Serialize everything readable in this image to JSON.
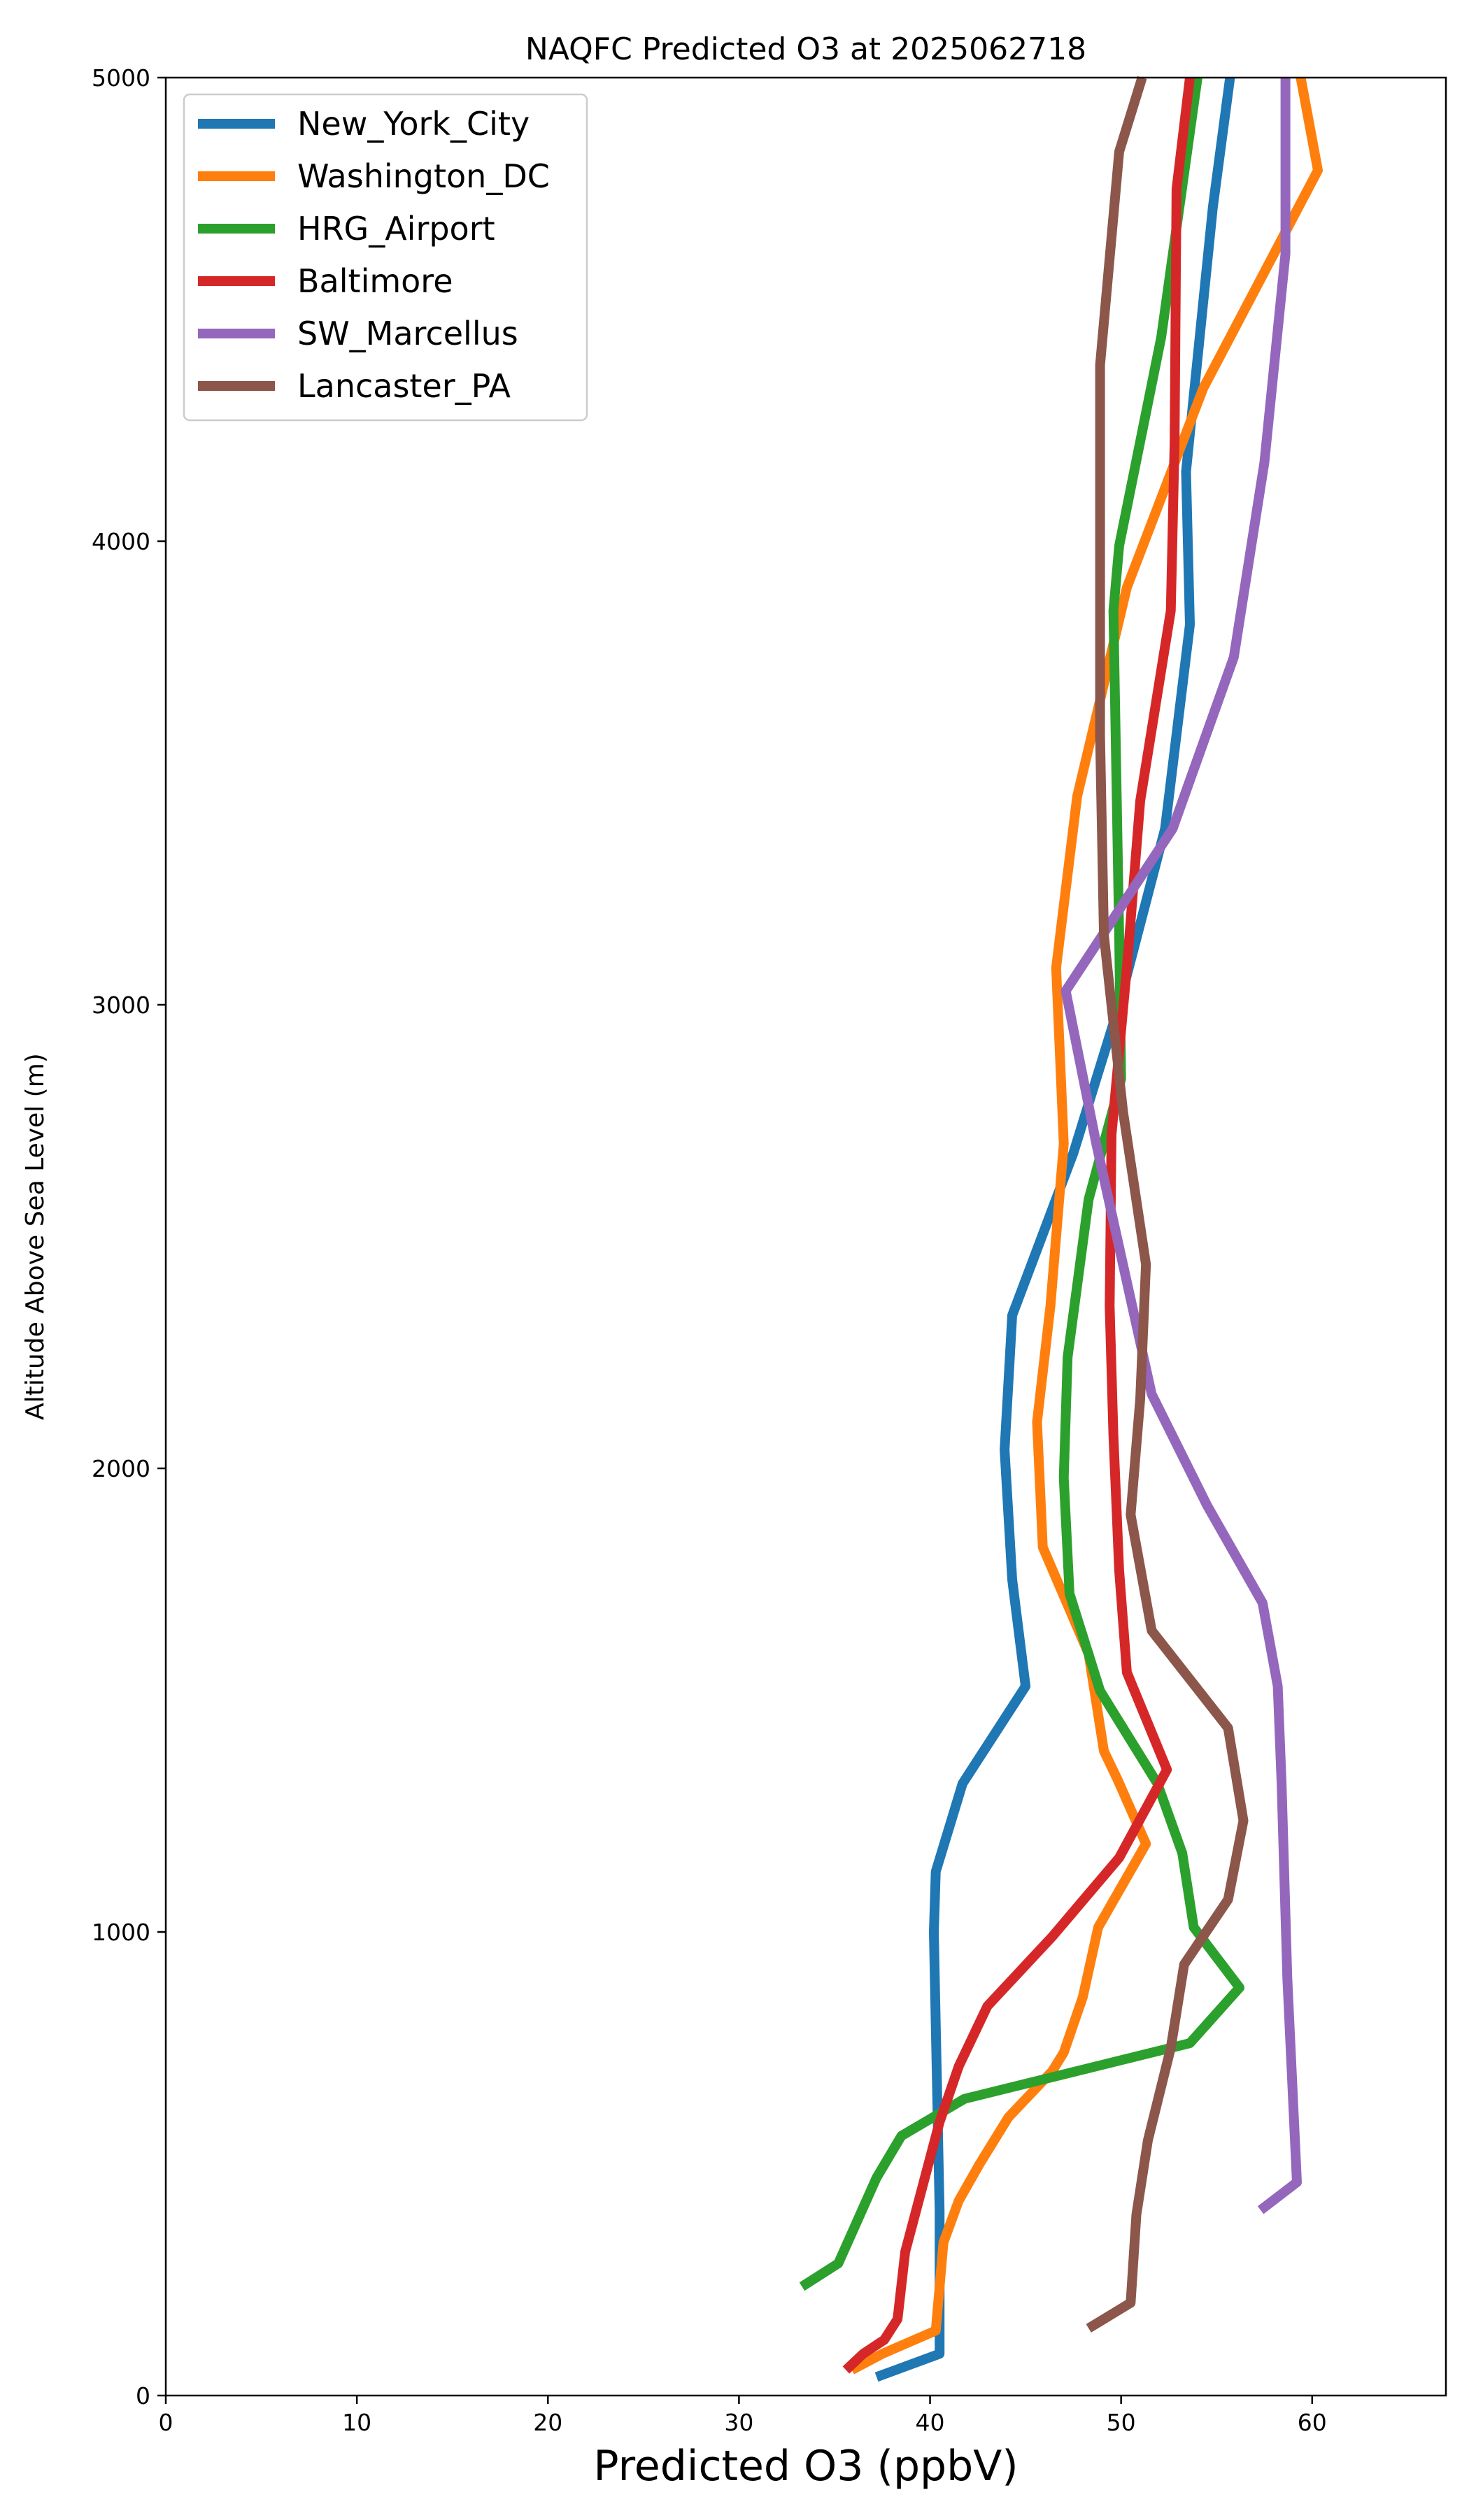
{
  "chart_data": {
    "type": "line",
    "title": "NAQFC Predicted O3 at 2025062718",
    "xlabel": "Predicted O3 (ppbV)",
    "ylabel": "Altitude Above Sea Level (m)",
    "xlim": [
      0,
      67
    ],
    "ylim": [
      0,
      5000
    ],
    "xticks": [
      0,
      10,
      20,
      30,
      40,
      50,
      60
    ],
    "yticks": [
      0,
      1000,
      2000,
      3000,
      4000,
      5000
    ],
    "grid": false,
    "legend_position": "top-left",
    "series": [
      {
        "name": "New_York_City",
        "color": "#1f77b4",
        "points": [
          [
            37.2,
            40
          ],
          [
            40.5,
            90
          ],
          [
            40.5,
            400
          ],
          [
            40.3,
            800
          ],
          [
            40.2,
            1000
          ],
          [
            40.3,
            1130
          ],
          [
            41.7,
            1320
          ],
          [
            45.0,
            1530
          ],
          [
            44.3,
            1760
          ],
          [
            43.9,
            2040
          ],
          [
            44.3,
            2330
          ],
          [
            47.5,
            2680
          ],
          [
            49.9,
            3000
          ],
          [
            52.3,
            3380
          ],
          [
            53.6,
            3820
          ],
          [
            53.4,
            4150
          ],
          [
            54.8,
            4720
          ],
          [
            55.7,
            5000
          ]
        ]
      },
      {
        "name": "Washington_DC",
        "color": "#ff7f0e",
        "points": [
          [
            35.9,
            55
          ],
          [
            37.5,
            90
          ],
          [
            40.3,
            140
          ],
          [
            40.7,
            330
          ],
          [
            41.5,
            420
          ],
          [
            42.6,
            500
          ],
          [
            44.1,
            600
          ],
          [
            46.4,
            700
          ],
          [
            47.0,
            740
          ],
          [
            48.0,
            860
          ],
          [
            48.8,
            1010
          ],
          [
            51.3,
            1190
          ],
          [
            49.8,
            1330
          ],
          [
            49.1,
            1390
          ],
          [
            48.3,
            1600
          ],
          [
            45.9,
            1830
          ],
          [
            45.6,
            2100
          ],
          [
            46.3,
            2350
          ],
          [
            47.0,
            2700
          ],
          [
            46.6,
            3080
          ],
          [
            47.7,
            3450
          ],
          [
            50.3,
            3900
          ],
          [
            54.3,
            4330
          ],
          [
            60.3,
            4800
          ],
          [
            59.4,
            5000
          ]
        ]
      },
      {
        "name": "HRG_Airport",
        "color": "#2ca02c",
        "points": [
          [
            33.3,
            235
          ],
          [
            35.2,
            285
          ],
          [
            37.2,
            470
          ],
          [
            38.5,
            560
          ],
          [
            41.8,
            640
          ],
          [
            53.6,
            760
          ],
          [
            56.2,
            880
          ],
          [
            53.8,
            1010
          ],
          [
            53.2,
            1170
          ],
          [
            51.9,
            1320
          ],
          [
            48.9,
            1520
          ],
          [
            47.3,
            1730
          ],
          [
            47.0,
            1980
          ],
          [
            47.2,
            2240
          ],
          [
            48.3,
            2580
          ],
          [
            50.0,
            2840
          ],
          [
            49.9,
            3150
          ],
          [
            49.6,
            3850
          ],
          [
            49.9,
            3990
          ],
          [
            52.1,
            4440
          ],
          [
            54.0,
            5000
          ]
        ]
      },
      {
        "name": "Baltimore",
        "color": "#d62728",
        "points": [
          [
            35.6,
            55
          ],
          [
            36.5,
            90
          ],
          [
            37.6,
            120
          ],
          [
            38.3,
            165
          ],
          [
            38.7,
            310
          ],
          [
            40.5,
            590
          ],
          [
            41.5,
            710
          ],
          [
            43.0,
            840
          ],
          [
            46.4,
            990
          ],
          [
            49.9,
            1160
          ],
          [
            52.4,
            1350
          ],
          [
            50.3,
            1560
          ],
          [
            49.9,
            1780
          ],
          [
            49.6,
            2070
          ],
          [
            49.4,
            2350
          ],
          [
            49.5,
            2720
          ],
          [
            50.3,
            3080
          ],
          [
            51.0,
            3440
          ],
          [
            52.6,
            3850
          ],
          [
            52.8,
            4210
          ],
          [
            52.9,
            4760
          ],
          [
            53.6,
            5000
          ]
        ]
      },
      {
        "name": "SW_Marcellus",
        "color": "#9467bd",
        "points": [
          [
            57.3,
            400
          ],
          [
            59.2,
            460
          ],
          [
            58.7,
            900
          ],
          [
            58.4,
            1320
          ],
          [
            58.2,
            1530
          ],
          [
            57.4,
            1710
          ],
          [
            54.5,
            1920
          ],
          [
            51.6,
            2160
          ],
          [
            48.7,
            2700
          ],
          [
            47.1,
            3030
          ],
          [
            52.7,
            3380
          ],
          [
            55.9,
            3750
          ],
          [
            57.5,
            4170
          ],
          [
            58.6,
            4620
          ],
          [
            58.6,
            5000
          ]
        ]
      },
      {
        "name": "Lancaster_PA",
        "color": "#8c564b",
        "points": [
          [
            48.3,
            145
          ],
          [
            50.5,
            200
          ],
          [
            50.8,
            390
          ],
          [
            51.4,
            550
          ],
          [
            52.6,
            750
          ],
          [
            53.3,
            930
          ],
          [
            55.6,
            1070
          ],
          [
            56.4,
            1240
          ],
          [
            55.6,
            1440
          ],
          [
            51.6,
            1650
          ],
          [
            50.5,
            1900
          ],
          [
            51.0,
            2150
          ],
          [
            51.3,
            2440
          ],
          [
            50.1,
            2770
          ],
          [
            49.1,
            3150
          ],
          [
            48.9,
            3580
          ],
          [
            48.9,
            4380
          ],
          [
            49.9,
            4840
          ],
          [
            51.1,
            5000
          ]
        ]
      }
    ]
  }
}
